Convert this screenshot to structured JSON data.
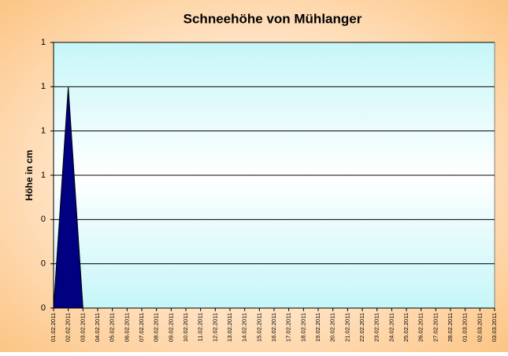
{
  "chart_data": {
    "type": "area",
    "title": "Schneehöhe von Mühlanger",
    "y_label": "Höhe in cm",
    "categories": [
      "01.02.2011",
      "02.02.2011",
      "03.02.2011",
      "04.02.2011",
      "05.02.2011",
      "06.02.2011",
      "07.02.2011",
      "08.02.2011",
      "09.02.2011",
      "10.02.2011",
      "11.02.2011",
      "12.02.2011",
      "13.02.2011",
      "14.02.2011",
      "15.02.2011",
      "16.02.2011",
      "17.02.2011",
      "18.02.2011",
      "19.02.2011",
      "20.02.2011",
      "21.02.2011",
      "22.02.2011",
      "23.02.2011",
      "24.02.2011",
      "25.02.2011",
      "26.02.2011",
      "27.02.2011",
      "28.02.2011",
      "01.03.2011",
      "02.03.2011",
      "03.03.2011"
    ],
    "values": [
      0,
      1,
      0,
      0,
      0,
      0,
      0,
      0,
      0,
      0,
      0,
      0,
      0,
      0,
      0,
      0,
      0,
      0,
      0,
      0,
      0,
      0,
      0,
      0,
      0,
      0,
      0,
      0,
      0,
      0,
      0
    ],
    "color": "#000080",
    "ylim": [
      0,
      1.2
    ],
    "yticks": [
      0,
      {
        "value": 0.2,
        "label": "0"
      },
      {
        "value": 0.4,
        "label": "0"
      },
      {
        "value": 0.6,
        "label": "1"
      },
      {
        "value": 0.8,
        "label": "1"
      },
      1,
      {
        "value": 1.2,
        "label": "1"
      }
    ],
    "grid": true
  }
}
